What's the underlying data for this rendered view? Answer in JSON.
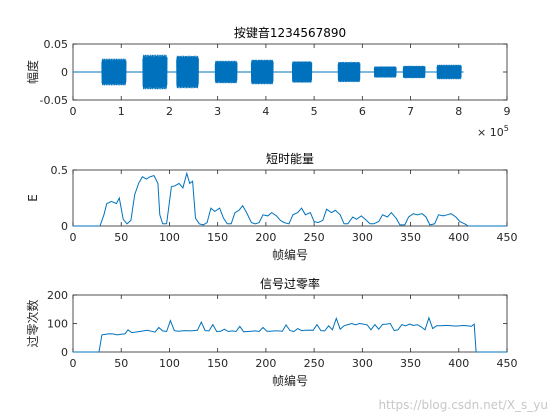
{
  "watermark": "https://blog.csdn.net/X_s_yu",
  "colors": {
    "series": "#0072BD",
    "axis": "#262626"
  },
  "chart_data": [
    {
      "type": "line",
      "title": "按键音1234567890",
      "ylabel": "幅度",
      "xlabel": "",
      "xlim": [
        0,
        9
      ],
      "ylim": [
        -0.05,
        0.05
      ],
      "xticks": [
        "0",
        "1",
        "2",
        "3",
        "4",
        "5",
        "6",
        "7",
        "8",
        "9"
      ],
      "yticks": [
        "-0.05",
        "0",
        "0.05"
      ],
      "x_exponent_base": "× 10",
      "x_exponent_power": "5",
      "bursts": [
        {
          "start": 0.6,
          "end": 1.1,
          "amplitude": 0.024
        },
        {
          "start": 1.45,
          "end": 1.95,
          "amplitude": 0.031
        },
        {
          "start": 2.15,
          "end": 2.6,
          "amplitude": 0.029
        },
        {
          "start": 2.95,
          "end": 3.4,
          "amplitude": 0.02
        },
        {
          "start": 3.7,
          "end": 4.15,
          "amplitude": 0.022
        },
        {
          "start": 4.55,
          "end": 4.95,
          "amplitude": 0.019
        },
        {
          "start": 5.5,
          "end": 5.95,
          "amplitude": 0.018
        },
        {
          "start": 6.25,
          "end": 6.7,
          "amplitude": 0.01
        },
        {
          "start": 6.85,
          "end": 7.3,
          "amplitude": 0.011
        },
        {
          "start": 7.55,
          "end": 8.05,
          "amplitude": 0.013
        }
      ]
    },
    {
      "type": "line",
      "title": "短时能量",
      "ylabel": "E",
      "xlabel": "帧编号",
      "xlim": [
        0,
        450
      ],
      "ylim": [
        0,
        0.5
      ],
      "xticks": [
        "0",
        "50",
        "100",
        "150",
        "200",
        "250",
        "300",
        "350",
        "400",
        "450"
      ],
      "yticks": [
        "0",
        "0.5"
      ],
      "x": [
        0,
        28,
        32,
        35,
        40,
        45,
        48,
        52,
        56,
        60,
        64,
        68,
        72,
        76,
        80,
        84,
        88,
        90,
        93,
        97,
        102,
        106,
        110,
        114,
        118,
        121,
        124,
        127,
        131,
        135,
        139,
        143,
        147,
        152,
        156,
        160,
        164,
        168,
        172,
        176,
        180,
        185,
        189,
        193,
        197,
        202,
        206,
        211,
        215,
        219,
        224,
        228,
        233,
        237,
        241,
        246,
        250,
        254,
        259,
        263,
        268,
        272,
        277,
        281,
        285,
        290,
        294,
        299,
        303,
        308,
        312,
        317,
        321,
        326,
        330,
        335,
        339,
        344,
        348,
        353,
        357,
        362,
        366,
        370,
        375,
        379,
        384,
        388,
        392,
        397,
        401,
        406,
        410,
        414,
        418,
        450
      ],
      "values": [
        0,
        0,
        0.1,
        0.2,
        0.22,
        0.2,
        0.25,
        0.06,
        0.02,
        0.05,
        0.28,
        0.38,
        0.44,
        0.42,
        0.44,
        0.45,
        0.38,
        0.1,
        0.02,
        0.02,
        0.35,
        0.36,
        0.38,
        0.34,
        0.47,
        0.38,
        0.4,
        0.07,
        0.02,
        0.01,
        0.03,
        0.16,
        0.13,
        0.16,
        0.07,
        0.02,
        0.02,
        0.12,
        0.14,
        0.18,
        0.12,
        0.03,
        0.02,
        0.03,
        0.1,
        0.09,
        0.12,
        0.09,
        0.05,
        0.03,
        0.02,
        0.1,
        0.12,
        0.16,
        0.1,
        0.12,
        0.04,
        0.03,
        0.05,
        0.15,
        0.12,
        0.14,
        0.1,
        0.02,
        0.02,
        0.08,
        0.06,
        0.09,
        0.06,
        0.02,
        0.02,
        0.04,
        0.1,
        0.08,
        0.12,
        0.07,
        0.01,
        0.01,
        0.08,
        0.11,
        0.1,
        0.11,
        0.08,
        0.01,
        0.02,
        0.1,
        0.09,
        0.1,
        0.11,
        0.08,
        0.04,
        0.02,
        0,
        0,
        0,
        0
      ]
    },
    {
      "type": "line",
      "title": "信号过零率",
      "ylabel": "过零次数",
      "xlabel": "帧编号",
      "xlim": [
        0,
        450
      ],
      "ylim": [
        0,
        200
      ],
      "xticks": [
        "0",
        "50",
        "100",
        "150",
        "200",
        "250",
        "300",
        "350",
        "400",
        "450"
      ],
      "yticks": [
        "0",
        "100",
        "200"
      ],
      "x": [
        0,
        27,
        30,
        34,
        38,
        42,
        46,
        50,
        54,
        57,
        61,
        65,
        69,
        73,
        77,
        81,
        85,
        89,
        93,
        97,
        101,
        105,
        109,
        113,
        117,
        121,
        125,
        129,
        133,
        137,
        141,
        145,
        149,
        153,
        157,
        161,
        165,
        169,
        173,
        177,
        181,
        185,
        189,
        193,
        197,
        201,
        205,
        209,
        213,
        217,
        221,
        225,
        229,
        233,
        237,
        241,
        245,
        249,
        253,
        257,
        261,
        265,
        269,
        273,
        277,
        281,
        285,
        289,
        293,
        297,
        301,
        305,
        309,
        313,
        317,
        321,
        325,
        329,
        333,
        337,
        341,
        345,
        349,
        353,
        357,
        361,
        365,
        369,
        373,
        377,
        381,
        385,
        389,
        393,
        397,
        401,
        405,
        409,
        413,
        416,
        418,
        450
      ],
      "values": [
        0,
        0,
        60,
        62,
        64,
        63,
        60,
        62,
        64,
        78,
        68,
        70,
        72,
        74,
        76,
        73,
        70,
        86,
        74,
        72,
        110,
        75,
        73,
        74,
        75,
        74,
        75,
        76,
        105,
        75,
        74,
        96,
        72,
        73,
        80,
        72,
        74,
        72,
        90,
        71,
        72,
        73,
        74,
        72,
        86,
        73,
        73,
        74,
        74,
        73,
        95,
        75,
        72,
        82,
        75,
        76,
        77,
        76,
        96,
        75,
        74,
        92,
        78,
        118,
        80,
        92,
        96,
        100,
        95,
        100,
        98,
        95,
        78,
        96,
        80,
        97,
        98,
        100,
        75,
        78,
        96,
        92,
        98,
        93,
        96,
        88,
        78,
        120,
        82,
        92,
        92,
        93,
        93,
        92,
        91,
        92,
        93,
        92,
        90,
        98,
        0,
        0
      ]
    }
  ]
}
